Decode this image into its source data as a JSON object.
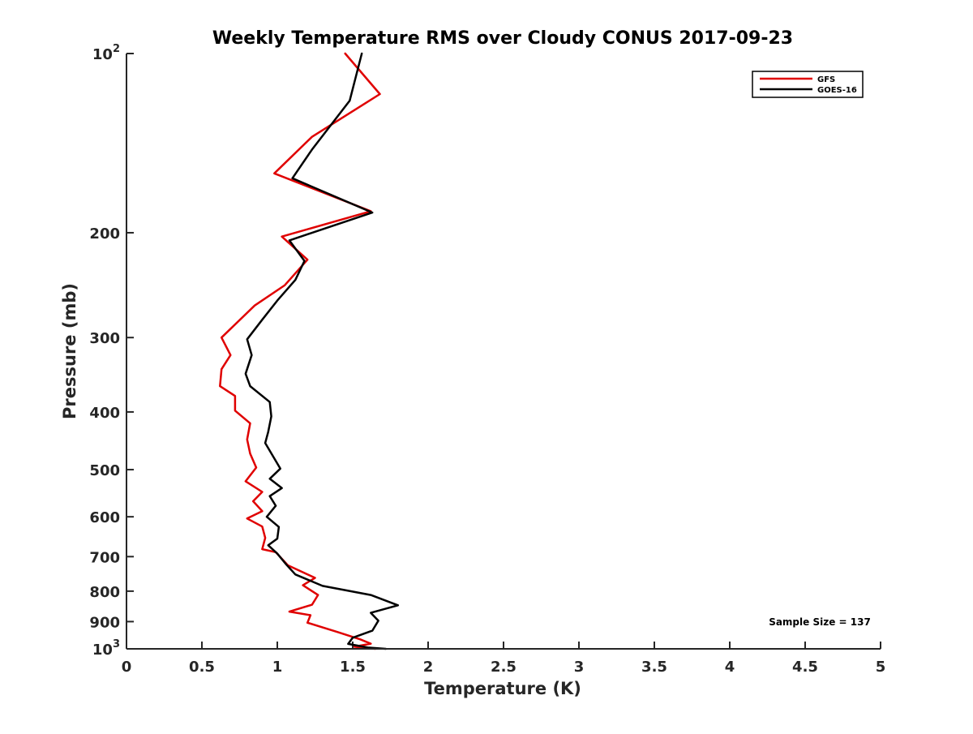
{
  "chart_data": {
    "type": "line",
    "title": "Weekly Temperature RMS over Cloudy CONUS 2017-09-23",
    "xlabel": "Temperature (K)",
    "ylabel": "Pressure (mb)",
    "xlim": [
      0,
      5
    ],
    "ylim": [
      100,
      1000
    ],
    "yscale": "log",
    "yreversed": true,
    "grid": false,
    "legend_position": "top-right",
    "x_ticks": [
      {
        "value": 0,
        "label": "0"
      },
      {
        "value": 0.5,
        "label": "0.5"
      },
      {
        "value": 1,
        "label": "1"
      },
      {
        "value": 1.5,
        "label": "1.5"
      },
      {
        "value": 2,
        "label": "2"
      },
      {
        "value": 2.5,
        "label": "2.5"
      },
      {
        "value": 3,
        "label": "3"
      },
      {
        "value": 3.5,
        "label": "3.5"
      },
      {
        "value": 4,
        "label": "4"
      },
      {
        "value": 4.5,
        "label": "4.5"
      },
      {
        "value": 5,
        "label": "5"
      }
    ],
    "y_ticks": [
      {
        "value": 100,
        "base": "10",
        "exp": "2"
      },
      {
        "value": 200,
        "base": "200",
        "exp": ""
      },
      {
        "value": 300,
        "base": "300",
        "exp": ""
      },
      {
        "value": 400,
        "base": "400",
        "exp": ""
      },
      {
        "value": 500,
        "base": "500",
        "exp": ""
      },
      {
        "value": 600,
        "base": "600",
        "exp": ""
      },
      {
        "value": 700,
        "base": "700",
        "exp": ""
      },
      {
        "value": 800,
        "base": "800",
        "exp": ""
      },
      {
        "value": 900,
        "base": "900",
        "exp": ""
      },
      {
        "value": 1000,
        "base": "10",
        "exp": "3"
      }
    ],
    "annotation": "Sample Size = 137",
    "series": [
      {
        "name": "GFS",
        "color": "#e00000",
        "points": [
          [
            1.45,
            100
          ],
          [
            1.68,
            117
          ],
          [
            1.23,
            138
          ],
          [
            0.98,
            159
          ],
          [
            1.62,
            184
          ],
          [
            1.03,
            203
          ],
          [
            1.2,
            222
          ],
          [
            1.05,
            245
          ],
          [
            0.85,
            265
          ],
          [
            0.63,
            300
          ],
          [
            0.69,
            321
          ],
          [
            0.63,
            339
          ],
          [
            0.62,
            362
          ],
          [
            0.72,
            376
          ],
          [
            0.72,
            398
          ],
          [
            0.82,
            418
          ],
          [
            0.8,
            445
          ],
          [
            0.82,
            470
          ],
          [
            0.86,
            496
          ],
          [
            0.79,
            523
          ],
          [
            0.9,
            545
          ],
          [
            0.84,
            565
          ],
          [
            0.9,
            587
          ],
          [
            0.8,
            604
          ],
          [
            0.9,
            623
          ],
          [
            0.92,
            651
          ],
          [
            0.9,
            680
          ],
          [
            0.99,
            688
          ],
          [
            1.07,
            724
          ],
          [
            1.25,
            760
          ],
          [
            1.17,
            782
          ],
          [
            1.27,
            812
          ],
          [
            1.23,
            843
          ],
          [
            1.08,
            866
          ],
          [
            1.22,
            878
          ],
          [
            1.2,
            904
          ],
          [
            1.4,
            937
          ],
          [
            1.55,
            964
          ],
          [
            1.62,
            980
          ],
          [
            1.51,
            992
          ],
          [
            1.65,
            1000
          ]
        ]
      },
      {
        "name": "GOES-16",
        "color": "#000000",
        "points": [
          [
            1.56,
            100
          ],
          [
            1.48,
            120
          ],
          [
            1.23,
            145
          ],
          [
            1.1,
            162
          ],
          [
            1.63,
            185
          ],
          [
            1.08,
            206
          ],
          [
            1.18,
            223
          ],
          [
            1.12,
            240
          ],
          [
            1.0,
            260
          ],
          [
            0.9,
            280
          ],
          [
            0.8,
            302
          ],
          [
            0.83,
            321
          ],
          [
            0.79,
            345
          ],
          [
            0.82,
            362
          ],
          [
            0.95,
            385
          ],
          [
            0.96,
            407
          ],
          [
            0.94,
            432
          ],
          [
            0.92,
            451
          ],
          [
            0.97,
            474
          ],
          [
            1.02,
            498
          ],
          [
            0.95,
            518
          ],
          [
            1.03,
            537
          ],
          [
            0.95,
            554
          ],
          [
            0.99,
            575
          ],
          [
            0.93,
            600
          ],
          [
            1.01,
            624
          ],
          [
            1.0,
            653
          ],
          [
            0.94,
            670
          ],
          [
            1.0,
            692
          ],
          [
            1.06,
            722
          ],
          [
            1.12,
            750
          ],
          [
            1.3,
            784
          ],
          [
            1.62,
            812
          ],
          [
            1.8,
            845
          ],
          [
            1.62,
            870
          ],
          [
            1.67,
            897
          ],
          [
            1.63,
            932
          ],
          [
            1.5,
            958
          ],
          [
            1.47,
            981
          ],
          [
            1.6,
            995
          ],
          [
            1.72,
            1000
          ]
        ]
      }
    ]
  }
}
